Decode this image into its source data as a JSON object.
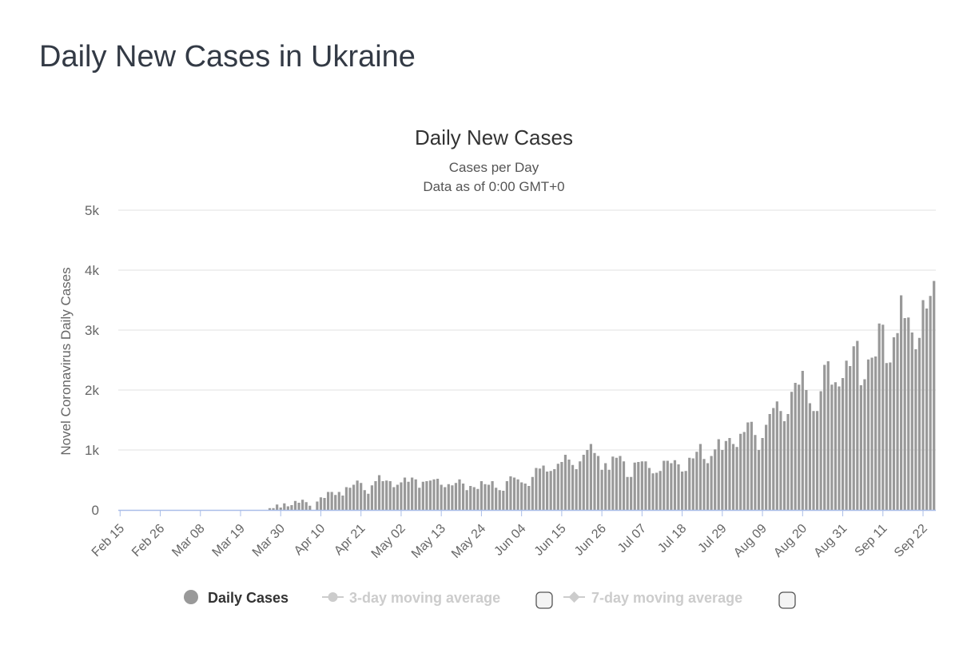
{
  "page": {
    "title": "Daily New Cases in Ukraine"
  },
  "chart_data": {
    "type": "bar",
    "title": "Daily New Cases",
    "subtitle": "Cases per Day",
    "subtitle2": "Data as of 0:00 GMT+0",
    "xlabel": "",
    "ylabel": "Novel Coronavirus Daily Cases",
    "ylim": [
      0,
      5000
    ],
    "yticks": [
      {
        "value": 0,
        "label": "0"
      },
      {
        "value": 1000,
        "label": "1k"
      },
      {
        "value": 2000,
        "label": "2k"
      },
      {
        "value": 3000,
        "label": "3k"
      },
      {
        "value": 4000,
        "label": "4k"
      },
      {
        "value": 5000,
        "label": "5k"
      }
    ],
    "xticks": [
      {
        "index": 0,
        "label": "Feb 15"
      },
      {
        "index": 11,
        "label": "Feb 26"
      },
      {
        "index": 22,
        "label": "Mar 08"
      },
      {
        "index": 33,
        "label": "Mar 19"
      },
      {
        "index": 44,
        "label": "Mar 30"
      },
      {
        "index": 55,
        "label": "Apr 10"
      },
      {
        "index": 66,
        "label": "Apr 21"
      },
      {
        "index": 77,
        "label": "May 02"
      },
      {
        "index": 88,
        "label": "May 13"
      },
      {
        "index": 99,
        "label": "May 24"
      },
      {
        "index": 110,
        "label": "Jun 04"
      },
      {
        "index": 121,
        "label": "Jun 15"
      },
      {
        "index": 132,
        "label": "Jun 26"
      },
      {
        "index": 143,
        "label": "Jul 07"
      },
      {
        "index": 154,
        "label": "Jul 18"
      },
      {
        "index": 165,
        "label": "Jul 29"
      },
      {
        "index": 176,
        "label": "Aug 09"
      },
      {
        "index": 187,
        "label": "Aug 20"
      },
      {
        "index": 198,
        "label": "Aug 31"
      },
      {
        "index": 209,
        "label": "Sep 11"
      },
      {
        "index": 220,
        "label": "Sep 22"
      }
    ],
    "categories_start": "Feb 15",
    "series": [
      {
        "name": "Daily Cases",
        "color": "#999999",
        "values": [
          0,
          0,
          0,
          0,
          0,
          0,
          0,
          0,
          0,
          0,
          0,
          0,
          0,
          0,
          0,
          0,
          0,
          0,
          0,
          0,
          0,
          0,
          0,
          0,
          0,
          0,
          0,
          0,
          0,
          0,
          0,
          0,
          0,
          0,
          0,
          0,
          0,
          0,
          0,
          0,
          0,
          30,
          30,
          90,
          40,
          110,
          60,
          80,
          150,
          120,
          170,
          130,
          70,
          0,
          140,
          210,
          200,
          300,
          300,
          250,
          300,
          240,
          380,
          370,
          420,
          490,
          450,
          330,
          270,
          410,
          480,
          580,
          480,
          490,
          480,
          380,
          420,
          460,
          540,
          470,
          540,
          510,
          370,
          470,
          480,
          490,
          510,
          520,
          420,
          380,
          430,
          410,
          450,
          510,
          440,
          330,
          400,
          380,
          350,
          480,
          430,
          420,
          480,
          370,
          330,
          320,
          480,
          560,
          540,
          510,
          460,
          440,
          400,
          550,
          700,
          690,
          740,
          640,
          650,
          680,
          770,
          800,
          920,
          840,
          750,
          680,
          810,
          920,
          1000,
          1100,
          950,
          900,
          670,
          780,
          670,
          890,
          870,
          900,
          810,
          550,
          550,
          790,
          800,
          810,
          810,
          700,
          610,
          620,
          650,
          820,
          820,
          780,
          830,
          760,
          640,
          650,
          870,
          860,
          970,
          1100,
          850,
          780,
          900,
          1010,
          1180,
          1000,
          1150,
          1200,
          1100,
          1050,
          1270,
          1300,
          1460,
          1470,
          1250,
          1000,
          1200,
          1420,
          1600,
          1700,
          1810,
          1650,
          1480,
          1600,
          1970,
          2120,
          2090,
          2320,
          2000,
          1780,
          1650,
          1650,
          1980,
          2420,
          2480,
          2090,
          2130,
          2060,
          2200,
          2490,
          2400,
          2730,
          2820,
          2080,
          2180,
          2510,
          2540,
          2560,
          3110,
          3090,
          2450,
          2460,
          2880,
          2950,
          3580,
          3200,
          3210,
          2960,
          2680,
          2870,
          3500,
          3360,
          3570,
          3820
        ]
      }
    ],
    "legend": [
      {
        "name": "Daily Cases",
        "symbol": "circle",
        "color": "#999999",
        "active": true
      },
      {
        "name": "3-day moving average",
        "symbol": "line-circle",
        "color": "#cccccc",
        "active": false
      },
      {
        "name": "7-day moving average",
        "symbol": "line-diamond",
        "color": "#cccccc",
        "active": false
      }
    ],
    "colors": {
      "axis": "#a9bde8",
      "grid": "#e6e6e6",
      "bar": "#999999"
    }
  }
}
